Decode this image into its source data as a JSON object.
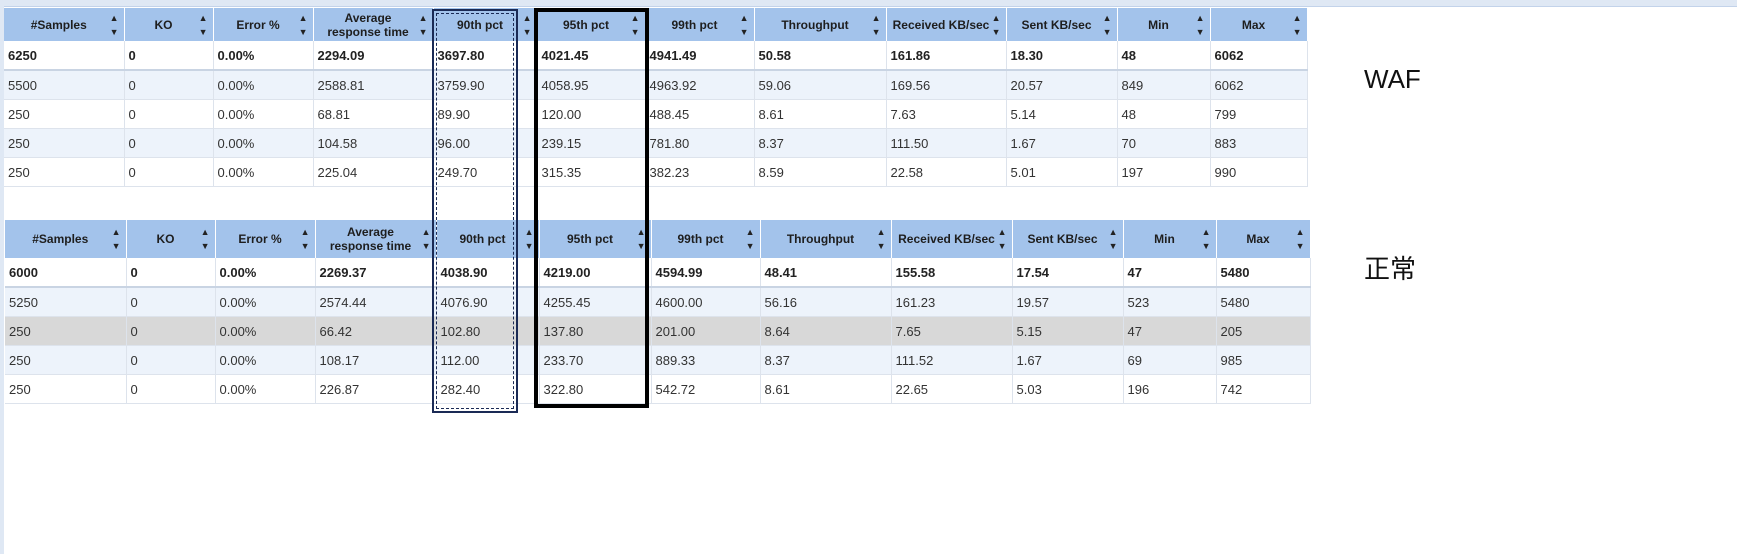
{
  "headers": [
    "#Samples",
    "KO",
    "Error %",
    "Average response time",
    "90th pct",
    "95th pct",
    "99th pct",
    "Throughput",
    "Received KB/sec",
    "Sent KB/sec",
    "Min",
    "Max"
  ],
  "labels": {
    "waf": "WAF",
    "normal": "正常"
  },
  "waf_rows": [
    [
      "6250",
      "0",
      "0.00%",
      "2294.09",
      "3697.80",
      "4021.45",
      "4941.49",
      "50.58",
      "161.86",
      "18.30",
      "48",
      "6062"
    ],
    [
      "5500",
      "0",
      "0.00%",
      "2588.81",
      "3759.90",
      "4058.95",
      "4963.92",
      "59.06",
      "169.56",
      "20.57",
      "849",
      "6062"
    ],
    [
      "250",
      "0",
      "0.00%",
      "68.81",
      "89.90",
      "120.00",
      "488.45",
      "8.61",
      "7.63",
      "5.14",
      "48",
      "799"
    ],
    [
      "250",
      "0",
      "0.00%",
      "104.58",
      "96.00",
      "239.15",
      "781.80",
      "8.37",
      "111.50",
      "1.67",
      "70",
      "883"
    ],
    [
      "250",
      "0",
      "0.00%",
      "225.04",
      "249.70",
      "315.35",
      "382.23",
      "8.59",
      "22.58",
      "5.01",
      "197",
      "990"
    ]
  ],
  "normal_rows": [
    [
      "6000",
      "0",
      "0.00%",
      "2269.37",
      "4038.90",
      "4219.00",
      "4594.99",
      "48.41",
      "155.58",
      "17.54",
      "47",
      "5480"
    ],
    [
      "5250",
      "0",
      "0.00%",
      "2574.44",
      "4076.90",
      "4255.45",
      "4600.00",
      "56.16",
      "161.23",
      "19.57",
      "523",
      "5480"
    ],
    [
      "250",
      "0",
      "0.00%",
      "66.42",
      "102.80",
      "137.80",
      "201.00",
      "8.64",
      "7.65",
      "5.15",
      "47",
      "205"
    ],
    [
      "250",
      "0",
      "0.00%",
      "108.17",
      "112.00",
      "233.70",
      "889.33",
      "8.37",
      "111.52",
      "1.67",
      "69",
      "985"
    ],
    [
      "250",
      "0",
      "0.00%",
      "226.87",
      "282.40",
      "322.80",
      "542.72",
      "8.61",
      "22.65",
      "5.03",
      "196",
      "742"
    ]
  ]
}
